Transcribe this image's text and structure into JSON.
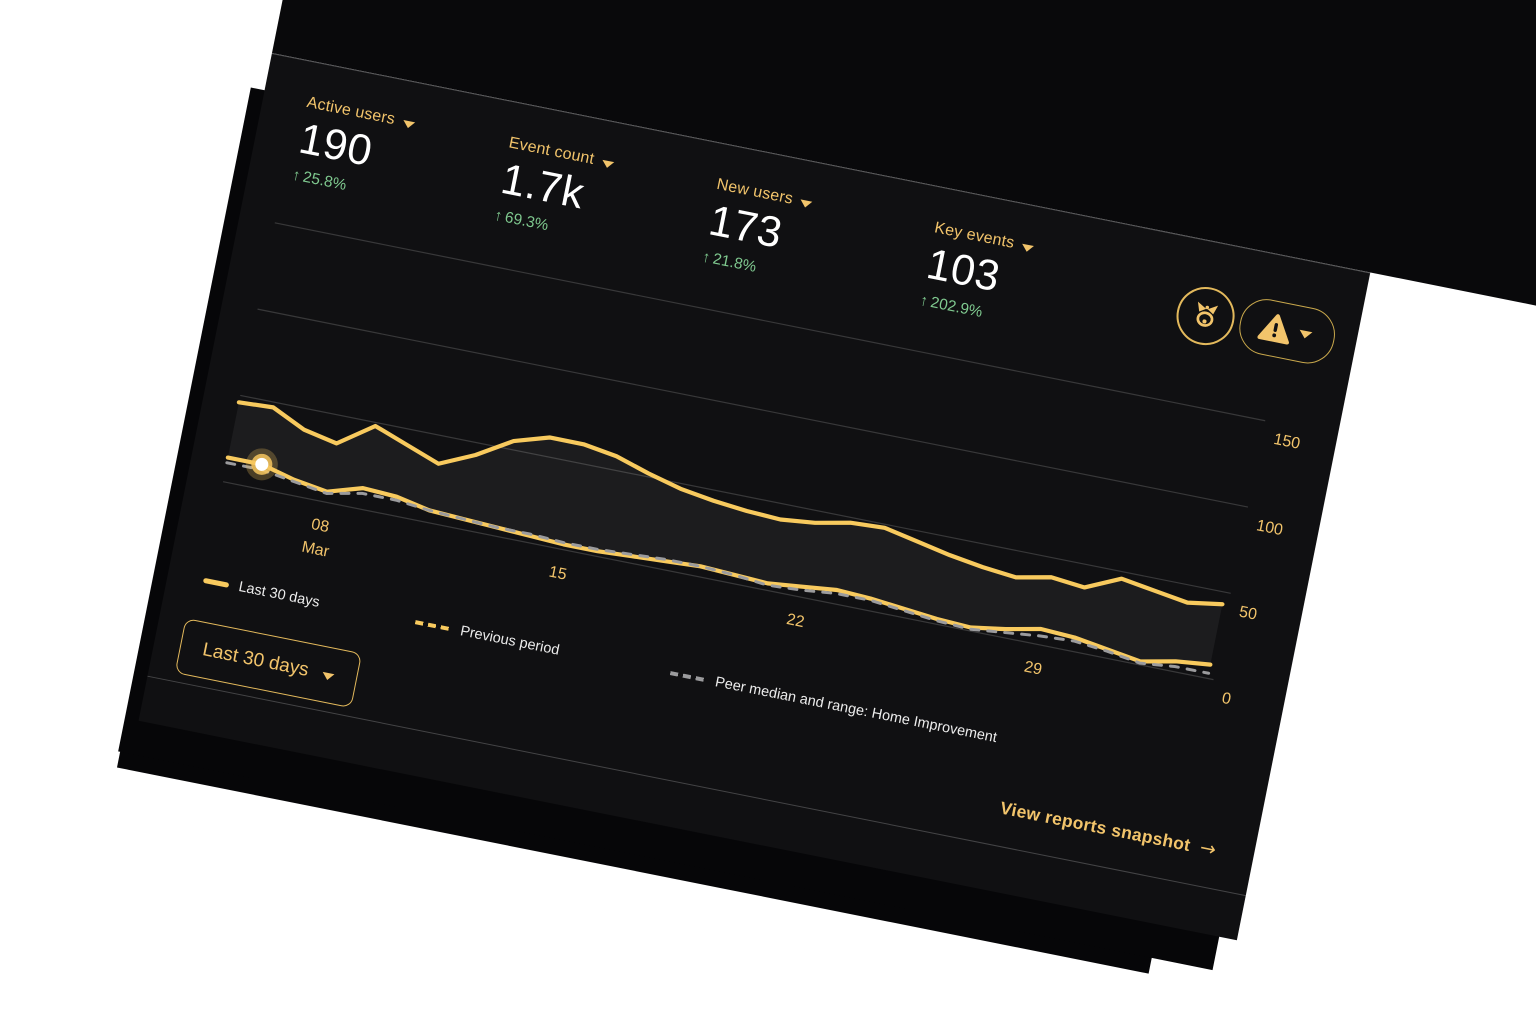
{
  "card_theme": {
    "background": "#101012",
    "accent_gold": "#F2C46B",
    "line_gold": "#F8CA5E",
    "positive_green": "#7FC98F",
    "page_background": "#ffffff"
  },
  "metrics": [
    {
      "label": "Active users",
      "value": "190",
      "arrow": "↑",
      "change": "25.8%"
    },
    {
      "label": "Event count",
      "value": "1.7k",
      "arrow": "↑",
      "change": "69.3%"
    },
    {
      "label": "New users",
      "value": "173",
      "arrow": "↑",
      "change": "21.8%"
    },
    {
      "label": "Key events",
      "value": "103",
      "arrow": "↑",
      "change": "202.9%"
    }
  ],
  "header_icons": {
    "insights": "insights-sparkle-icon",
    "warning": "warning-triangle-icon"
  },
  "chart_data": {
    "type": "line",
    "x_range_days": 30,
    "grid": "horizontal",
    "legend_position": "bottom-left",
    "colors": {
      "axis": "#F2C46B",
      "gridline": "rgba(255,255,255,0.17)"
    },
    "y_axis": {
      "ticks": [
        150,
        100,
        50,
        0
      ],
      "range": [
        0,
        150
      ]
    },
    "x_ticks": [
      {
        "label": "08",
        "sublabel": "Mar",
        "day_index": 3
      },
      {
        "label": "15",
        "day_index": 10
      },
      {
        "label": "22",
        "day_index": 17
      },
      {
        "label": "29",
        "day_index": 24
      }
    ],
    "series": [
      {
        "name": "Last 30 days",
        "color": "#F8CA5E",
        "legend_swatch": "solid-gold",
        "plot_style": "solid",
        "values": [
          46,
          47,
          38,
          34,
          48,
          41,
          34,
          43,
          55,
          61,
          61,
          58,
          52,
          47,
          44,
          42,
          41,
          43,
          47,
          48,
          44,
          40,
          37,
          35,
          39,
          37,
          46,
          43,
          40,
          43
        ]
      },
      {
        "name": "Previous period",
        "color": "#F8CA5E",
        "legend_swatch": "dashed-gold",
        "plot_style": "solid",
        "highlight_point_index": 1,
        "values": [
          14,
          14,
          9,
          6,
          12,
          11,
          7,
          6,
          5,
          4,
          3,
          3,
          4,
          5,
          6,
          5,
          4,
          6,
          8,
          7,
          5,
          3,
          2,
          5,
          9,
          8,
          5,
          2,
          6,
          8
        ]
      },
      {
        "name": "Peer median and range: Home Improvement",
        "color": "#9B9B9D",
        "legend_swatch": "dashed-gray",
        "plot_style": "dashed",
        "values": [
          11,
          11,
          8,
          5,
          9,
          9,
          7,
          6,
          5,
          5,
          4,
          4,
          5,
          6,
          6,
          5,
          3,
          4,
          6,
          6,
          4,
          2,
          1,
          3,
          5,
          6,
          4,
          1,
          3,
          3
        ]
      }
    ],
    "band": {
      "between": [
        0,
        1
      ],
      "fill": "rgba(255,255,255,0.05)"
    }
  },
  "controls": {
    "date_range_label": "Last 30 days",
    "view_link_label": "View reports snapshot",
    "view_link_arrow": "→"
  }
}
